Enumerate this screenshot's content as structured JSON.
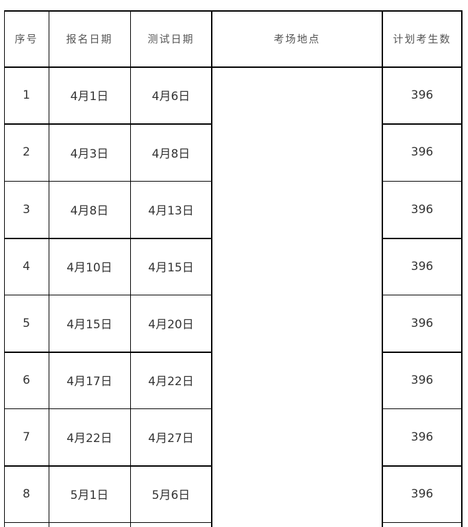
{
  "table": {
    "headers": [
      "序号",
      "报名日期",
      "测试日期",
      "考场地点",
      "计划考生数"
    ],
    "rows": [
      {
        "no": "1",
        "register": "4月1日",
        "test": "4月6日",
        "count": "396"
      },
      {
        "no": "2",
        "register": "4月3日",
        "test": "4月8日",
        "count": "396"
      },
      {
        "no": "3",
        "register": "4月8日",
        "test": "4月13日",
        "count": "396"
      },
      {
        "no": "4",
        "register": "4月10日",
        "test": "4月15日",
        "count": "396"
      },
      {
        "no": "5",
        "register": "4月15日",
        "test": "4月20日",
        "count": "396"
      },
      {
        "no": "6",
        "register": "4月17日",
        "test": "4月22日",
        "count": "396"
      },
      {
        "no": "7",
        "register": "4月22日",
        "test": "4月27日",
        "count": "396"
      },
      {
        "no": "8",
        "register": "5月1日",
        "test": "5月6日",
        "count": "396"
      }
    ]
  }
}
